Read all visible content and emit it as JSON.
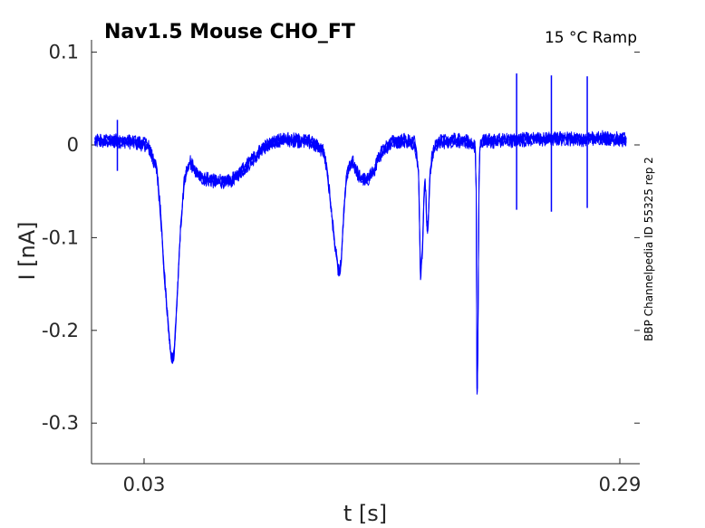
{
  "chart_data": {
    "type": "line",
    "title": "Nav1.5  Mouse  CHO_FT",
    "condition": "15 °C  Ramp",
    "side_label": "BBP Channelpedia ID 55325 rep 2",
    "xlabel": "t [s]",
    "ylabel": "I [nA]",
    "xlim": [
      0.003,
      0.2935
    ],
    "ylim": [
      -0.34,
      0.115
    ],
    "xticks": [
      0.03,
      0.29
    ],
    "xtick_labels": [
      "0.03",
      "0.29"
    ],
    "yticks": [
      0.1,
      0,
      -0.1,
      -0.2,
      -0.3
    ],
    "ytick_labels": [
      "0.1",
      "0",
      "-0.1",
      "-0.2",
      "-0.3"
    ],
    "grid": false,
    "line_color": "#0000ff",
    "series": [
      {
        "x": [
          0.003,
          0.02,
          0.032,
          0.037,
          0.039,
          0.041,
          0.0435,
          0.045,
          0.0465,
          0.048,
          0.05,
          0.052,
          0.055,
          0.058,
          0.062,
          0.07,
          0.078,
          0.086,
          0.095,
          0.105,
          0.12,
          0.128,
          0.13,
          0.132,
          0.134,
          0.136,
          0.137,
          0.138,
          0.139,
          0.1405,
          0.142,
          0.144,
          0.146,
          0.148,
          0.152,
          0.156,
          0.16,
          0.166,
          0.172,
          0.178,
          0.18,
          0.1805,
          0.181,
          0.182,
          0.183,
          0.1835,
          0.184,
          0.1845,
          0.185,
          0.1855,
          0.186,
          0.187,
          0.189,
          0.192,
          0.196,
          0.2,
          0.206,
          0.211,
          0.2115,
          0.212,
          0.2125,
          0.213,
          0.2135,
          0.214,
          0.2145,
          0.215,
          0.216,
          0.22,
          0.23,
          0.24,
          0.25,
          0.26,
          0.27,
          0.28,
          0.29,
          0.2935
        ],
        "y": [
          0.002,
          0.002,
          -0.002,
          -0.03,
          -0.075,
          -0.14,
          -0.205,
          -0.235,
          -0.225,
          -0.17,
          -0.09,
          -0.04,
          -0.02,
          -0.03,
          -0.038,
          -0.042,
          -0.04,
          -0.025,
          -0.005,
          0.004,
          0.002,
          -0.008,
          -0.03,
          -0.065,
          -0.105,
          -0.135,
          -0.14,
          -0.12,
          -0.08,
          -0.04,
          -0.025,
          -0.02,
          -0.03,
          -0.038,
          -0.04,
          -0.028,
          -0.008,
          0.001,
          0.003,
          0.0,
          -0.03,
          -0.08,
          -0.145,
          -0.12,
          -0.06,
          -0.04,
          -0.055,
          -0.09,
          -0.095,
          -0.075,
          -0.045,
          -0.02,
          -0.002,
          0.001,
          0.002,
          0.003,
          0.002,
          -0.005,
          -0.05,
          -0.3,
          -0.2,
          -0.05,
          -0.005,
          0.0,
          0.002,
          0.003,
          0.003,
          0.002,
          0.003,
          0.004,
          0.004,
          0.005,
          0.004,
          0.006,
          0.004,
          0.003
        ]
      }
    ],
    "spikes": [
      {
        "x": 0.2336,
        "top": 0.077,
        "bottom": -0.07
      },
      {
        "x": 0.2526,
        "top": 0.075,
        "bottom": -0.072
      },
      {
        "x": 0.2722,
        "top": 0.074,
        "bottom": -0.068
      },
      {
        "x": 0.0154,
        "top": 0.027,
        "bottom": -0.028
      }
    ]
  }
}
